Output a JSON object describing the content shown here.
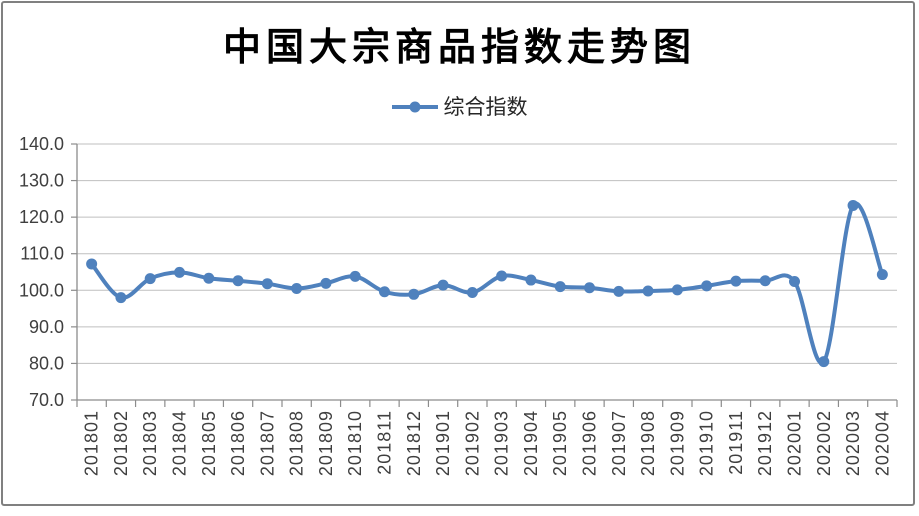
{
  "title": "中国大宗商品指数走势图",
  "legend": {
    "label": "综合指数"
  },
  "colors": {
    "line": "#4F81BD",
    "gridline": "#BFBFBF",
    "axis": "#8C8C8C",
    "tick": "#8C8C8C",
    "label": "#3F3F3F",
    "border": "#808080",
    "background": "#FFFFFF"
  },
  "chart_data": {
    "type": "line",
    "smooth": true,
    "title": "中国大宗商品指数走势图",
    "legend_position": "top-center",
    "grid": "horizontal",
    "marker": "circle",
    "line_color": "#4F81BD",
    "ylim": [
      70,
      140
    ],
    "ytick_step": 10,
    "ytick_labels": [
      "140.0",
      "130.0",
      "120.0",
      "110.0",
      "100.0",
      "90.0",
      "80.0",
      "70.0"
    ],
    "categories": [
      "201801",
      "201802",
      "201803",
      "201804",
      "201805",
      "201806",
      "201807",
      "201808",
      "201809",
      "201810",
      "201811",
      "201812",
      "201901",
      "201902",
      "201903",
      "201904",
      "201905",
      "201906",
      "201907",
      "201908",
      "201909",
      "201910",
      "201911",
      "201912",
      "202001",
      "202002",
      "202003",
      "202004"
    ],
    "series": [
      {
        "name": "综合指数",
        "values": [
          107.2,
          98.0,
          103.2,
          104.9,
          103.3,
          102.6,
          101.8,
          100.5,
          101.9,
          103.8,
          99.6,
          98.9,
          101.4,
          99.4,
          103.9,
          102.8,
          101.0,
          100.7,
          99.7,
          99.8,
          100.1,
          101.2,
          102.5,
          102.6,
          102.4,
          80.5,
          123.2,
          104.3
        ]
      }
    ]
  }
}
